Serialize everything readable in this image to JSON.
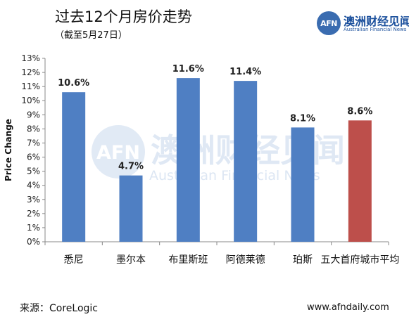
{
  "header": {
    "title": "过去12个月房价走势",
    "subtitle": "（截至5月27日）"
  },
  "logo": {
    "badge": "AFN",
    "name_cn": "澳洲财经见闻",
    "name_en": "Australian Financial News",
    "color": "#1a4f9c"
  },
  "watermark": {
    "badge": "AFN",
    "name_cn": "澳洲财经见闻",
    "name_en": "Australian Financial News"
  },
  "footer": {
    "source": "来源：CoreLogic",
    "site": "www.afndaily.com"
  },
  "chart_data": {
    "type": "bar",
    "title": "",
    "ylabel": "Price Change",
    "xlabel": "",
    "categories": [
      "悉尼",
      "墨尔本",
      "布里斯班",
      "阿德莱德",
      "珀斯",
      "五大首府城市平均"
    ],
    "values": [
      10.6,
      4.7,
      11.6,
      11.4,
      8.1,
      8.6
    ],
    "value_labels": [
      "10.6%",
      "4.7%",
      "11.6%",
      "11.4%",
      "8.1%",
      "8.6%"
    ],
    "colors": [
      "#4f7fc3",
      "#4f7fc3",
      "#4f7fc3",
      "#4f7fc3",
      "#4f7fc3",
      "#bd4f4b"
    ],
    "ylim": [
      0,
      13
    ],
    "yticks": [
      "0%",
      "1%",
      "2%",
      "3%",
      "4%",
      "5%",
      "6%",
      "7%",
      "8%",
      "9%",
      "10%",
      "11%",
      "12%",
      "13%"
    ],
    "grid": false,
    "legend": "none"
  }
}
